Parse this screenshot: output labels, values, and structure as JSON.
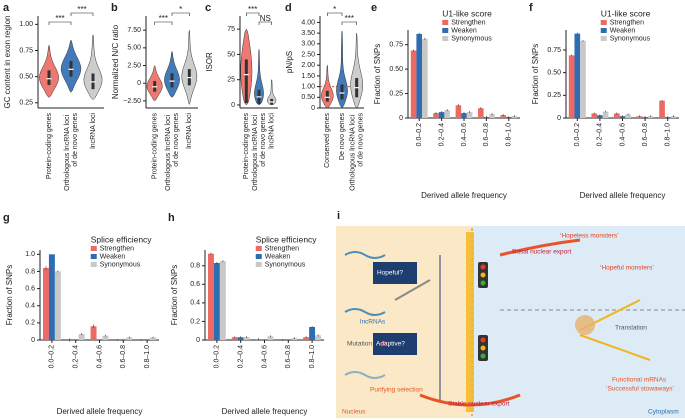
{
  "chart_data": [
    {
      "type": "violin",
      "panel": "a",
      "ylabel": "GC content in exon region",
      "categories": [
        "Protein-coding genes",
        "Orthologous lncRNA loci of de novo genes",
        "lncRNA loci"
      ],
      "colors": [
        "#ec6a63",
        "#2f6db3",
        "#c8c8c8"
      ],
      "min": [
        0.3,
        0.35,
        0.28
      ],
      "q1": [
        0.42,
        0.5,
        0.38
      ],
      "medians": [
        0.48,
        0.57,
        0.45
      ],
      "q3": [
        0.56,
        0.65,
        0.53
      ],
      "max": [
        0.8,
        0.85,
        0.9
      ],
      "ylim": [
        0.2,
        1.08
      ],
      "yticks": [
        0.25,
        {
          "value": 0.5,
          "label": "0.50"
        },
        0.75,
        {
          "value": 1,
          "label": "1.00"
        }
      ],
      "annotations": [
        "***",
        "***"
      ]
    },
    {
      "type": "violin",
      "panel": "b",
      "ylabel": "Normalized N/C ratio",
      "categories": [
        "Protein-coding genes",
        "Orthologous lncRNA loci of de novo genes",
        "lncRNA loci"
      ],
      "colors": [
        "#ec6a63",
        "#2f6db3",
        "#c8c8c8"
      ],
      "min": [
        -2.5,
        -2,
        -3
      ],
      "q1": [
        -1.2,
        -0.6,
        -0.3
      ],
      "medians": [
        -0.5,
        0.3,
        0.8
      ],
      "q3": [
        0.3,
        1.4,
        2
      ],
      "max": [
        2.5,
        4.5,
        7.5
      ],
      "ylim": [
        -3.5,
        9.5
      ],
      "yticks": [
        {
          "value": -2.5,
          "label": "−2.50"
        },
        0,
        {
          "value": 2.5,
          "label": "2.50"
        },
        {
          "value": 5,
          "label": "5.00"
        },
        {
          "value": 7.5,
          "label": "7.50"
        }
      ],
      "annotations": [
        "***",
        "*"
      ]
    },
    {
      "type": "violin",
      "panel": "c",
      "ylabel": "ISOR",
      "categories": [
        "Protein-coding genes",
        "Orthologous lncRNA loci of de novo genes",
        "lncRNA loci"
      ],
      "colors": [
        "#ec6a63",
        "#2f6db3",
        "#c8c8c8"
      ],
      "min": [
        0,
        0,
        0
      ],
      "q1": [
        2,
        1,
        0.5
      ],
      "medians": [
        30,
        8,
        3
      ],
      "q3": [
        45,
        15,
        6
      ],
      "max": [
        75,
        55,
        25
      ],
      "ylim": [
        -3,
        88
      ],
      "yticks": [
        0,
        25,
        50,
        75
      ],
      "annotations": [
        "***",
        "NS"
      ]
    },
    {
      "type": "violin",
      "panel": "d",
      "ylabel": "pN/pS",
      "categories": [
        "Conserved genes",
        "De novo genes",
        "Orthologous lncRNA loci of de novo genes"
      ],
      "colors": [
        "#ec6a63",
        "#2f6db3",
        "#c8c8c8"
      ],
      "min": [
        0,
        0,
        0
      ],
      "q1": [
        0.3,
        0.4,
        0.5
      ],
      "medians": [
        0.5,
        0.7,
        0.95
      ],
      "q3": [
        0.8,
        1.1,
        1.4
      ],
      "max": [
        2,
        3.6,
        3.5
      ],
      "hline": 1,
      "ylim": [
        0,
        4.3
      ],
      "yticks": [
        0,
        {
          "value": 0.5,
          "label": "0.50"
        },
        {
          "value": 1,
          "label": "1.00"
        },
        {
          "value": 1.5,
          "label": "1.50"
        },
        {
          "value": 2,
          "label": "2.00"
        },
        {
          "value": 2.5,
          "label": "2.50"
        },
        {
          "value": 3,
          "label": "3.00"
        },
        {
          "value": 3.5,
          "label": "3.50"
        },
        {
          "value": 4,
          "label": "4.00"
        }
      ],
      "annotations": [
        "*",
        "***"
      ]
    },
    {
      "type": "bar",
      "panel": "e",
      "ylabel": "Fraction of SNPs",
      "xlabel": "Derived allele frequency",
      "legend_title": "U1-like score",
      "categories": [
        "0.0–0.2",
        "0.2–0.4",
        "0.4–0.6",
        "0.6–0.8",
        "0.8–1.0"
      ],
      "series": [
        {
          "name": "Strengthen",
          "color": "#ec6a63",
          "values": [
            0.69,
            0.05,
            0.13,
            0.1,
            0.03
          ],
          "errors": [
            0.01,
            0.01,
            0.01,
            0.01,
            0.01
          ]
        },
        {
          "name": "Weaken",
          "color": "#2f6db3",
          "values": [
            0.86,
            0.06,
            0.05,
            0.01,
            0.01
          ],
          "errors": [
            0.01,
            0.01,
            0.01,
            0.01,
            0.01
          ]
        },
        {
          "name": "Synonymous",
          "color": "#c8c8c8",
          "values": [
            0.81,
            0.08,
            0.06,
            0.04,
            0.02
          ],
          "errors": [
            0.01,
            0.01,
            0.01,
            0.01,
            0.01
          ]
        }
      ],
      "ylim": [
        0,
        0.9
      ],
      "yticks": [
        0,
        0.25,
        {
          "value": 0.5,
          "label": "0.50"
        },
        0.75
      ]
    },
    {
      "type": "bar",
      "panel": "f",
      "ylabel": "Fraction of SNPs",
      "xlabel": "Derived allele frequency",
      "legend_title": "U1-like score",
      "categories": [
        "0.0–0.2",
        "0.2–0.4",
        "0.4–0.6",
        "0.6–0.8",
        "0.8–1.0"
      ],
      "series": [
        {
          "name": "Strengthen",
          "color": "#ec6a63",
          "values": [
            0.69,
            0.05,
            0.05,
            0.02,
            0.19
          ],
          "errors": [
            0.01,
            0.01,
            0.01,
            0.01,
            0.01
          ]
        },
        {
          "name": "Weaken",
          "color": "#2f6db3",
          "values": [
            0.93,
            0.03,
            0.02,
            0.01,
            0.01
          ],
          "errors": [
            0.01,
            0.01,
            0.01,
            0.01,
            0.01
          ]
        },
        {
          "name": "Synonymous",
          "color": "#c8c8c8",
          "values": [
            0.85,
            0.07,
            0.04,
            0.02,
            0.02
          ],
          "errors": [
            0.01,
            0.01,
            0.01,
            0.01,
            0.01
          ]
        }
      ],
      "ylim": [
        0,
        0.97
      ],
      "yticks": [
        0,
        0.25,
        {
          "value": 0.5,
          "label": "0.50"
        },
        0.75
      ]
    },
    {
      "type": "bar",
      "panel": "g",
      "ylabel": "Fraction of SNPs",
      "xlabel": "Derived allele frequency",
      "legend_title": "Splice efficiency",
      "categories": [
        "0.0–0.2",
        "0.2–0.4",
        "0.4–0.6",
        "0.6–0.8",
        "0.8–1.0"
      ],
      "series": [
        {
          "name": "Strengthen",
          "color": "#ec6a63",
          "values": [
            0.84,
            0,
            0.16,
            0,
            0
          ],
          "errors": [
            0.02,
            0.02,
            0.02,
            0.01,
            0.01
          ]
        },
        {
          "name": "Weaken",
          "color": "#2f6db3",
          "values": [
            1,
            0,
            0,
            0,
            0
          ],
          "errors": [
            0,
            0,
            0,
            0,
            0
          ]
        },
        {
          "name": "Synonymous",
          "color": "#c8c8c8",
          "values": [
            0.8,
            0.07,
            0.05,
            0.03,
            0.03
          ],
          "errors": [
            0.01,
            0.01,
            0.01,
            0.01,
            0.01
          ]
        }
      ],
      "ylim": [
        0,
        1.05
      ],
      "yticks": [
        0,
        0.2,
        0.4,
        0.6,
        0.8,
        {
          "value": 1,
          "label": "1.0"
        }
      ]
    },
    {
      "type": "bar",
      "panel": "h",
      "ylabel": "Fraction of SNPs",
      "xlabel": "Derived allele frequency",
      "legend_title": "Splice efficiency",
      "categories": [
        "0.0–0.2",
        "0.2–0.4",
        "0.4–0.6",
        "0.6–0.8",
        "0.8–1.0"
      ],
      "series": [
        {
          "name": "Strengthen",
          "color": "#ec6a63",
          "values": [
            0.93,
            0.03,
            0.01,
            0,
            0.03
          ],
          "errors": [
            0.01,
            0.01,
            0.01,
            0.01,
            0.01
          ]
        },
        {
          "name": "Weaken",
          "color": "#2f6db3",
          "values": [
            0.83,
            0.03,
            0,
            0,
            0.14
          ],
          "errors": [
            0.01,
            0.01,
            0,
            0,
            0.01
          ]
        },
        {
          "name": "Synonymous",
          "color": "#c8c8c8",
          "values": [
            0.85,
            0.03,
            0.04,
            0.02,
            0.05
          ],
          "errors": [
            0.01,
            0.01,
            0.01,
            0.01,
            0.01
          ]
        }
      ],
      "ylim": [
        0,
        0.97
      ],
      "yticks": [
        0,
        0.2,
        0.4,
        0.6,
        0.8
      ]
    }
  ],
  "diagram": {
    "panel": "i",
    "hopeless": "‘Hopeless monsters’",
    "basal_export": "Basal nuclear export",
    "hopeful_monsters": "‘Hopeful monsters’",
    "hopeful": "Hopeful?",
    "adaptive": "Adaptive?",
    "lncrnas": "lncRNAs",
    "mutation": "Mutation",
    "translation": "Translation",
    "purifying": "Purifying selection",
    "stable_export": "Stable nuclear export",
    "functional": "Functional mRNAs",
    "stowaways": "‘Successful stowaways’",
    "nucleus": "Nucleus",
    "cytoplasm": "Cytoplasm"
  }
}
